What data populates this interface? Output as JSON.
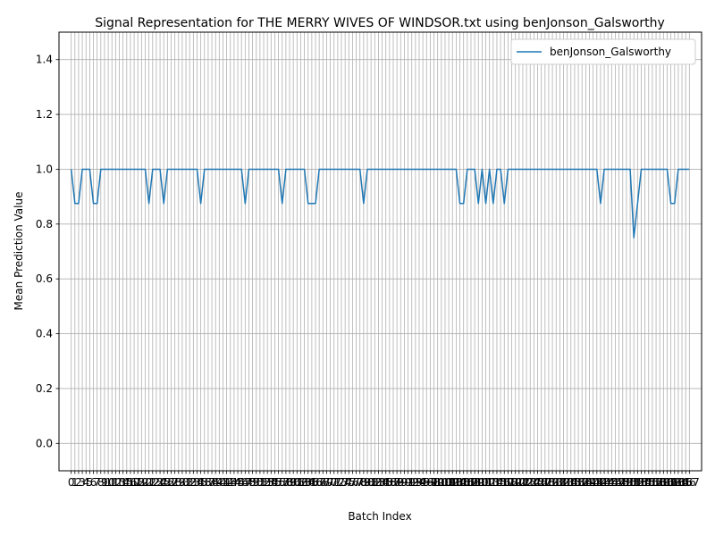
{
  "chart_data": {
    "type": "line",
    "title": "Signal Representation for THE MERRY WIVES OF WINDSOR.txt using benJonson_Galsworthy",
    "xlabel": "Batch Index",
    "ylabel": "Mean Prediction Value",
    "ylim": [
      -0.1,
      1.5
    ],
    "xlim": [
      -3.3,
      170.3
    ],
    "yticks": [
      0.0,
      0.2,
      0.4,
      0.6,
      0.8,
      1.0,
      1.2,
      1.4
    ],
    "ytick_labels": [
      "0.0",
      "0.2",
      "0.4",
      "0.6",
      "0.8",
      "1.0",
      "1.2",
      "1.4"
    ],
    "grid": true,
    "legend_position": "upper right",
    "x_first": 0,
    "x_last": 167,
    "dips": [
      [
        1,
        0.875
      ],
      [
        2,
        0.875
      ],
      [
        6,
        0.875
      ],
      [
        7,
        0.875
      ],
      [
        21,
        0.875
      ],
      [
        25,
        0.875
      ],
      [
        35,
        0.875
      ],
      [
        47,
        0.875
      ],
      [
        57,
        0.875
      ],
      [
        64,
        0.875
      ],
      [
        65,
        0.875
      ],
      [
        66,
        0.875
      ],
      [
        79,
        0.875
      ],
      [
        105,
        0.875
      ],
      [
        106,
        0.875
      ],
      [
        110,
        0.875
      ],
      [
        112,
        0.875
      ],
      [
        114,
        0.875
      ],
      [
        117,
        0.875
      ],
      [
        143,
        0.875
      ],
      [
        152,
        0.75
      ],
      [
        153,
        0.875
      ],
      [
        162,
        0.875
      ],
      [
        163,
        0.875
      ]
    ],
    "default_value": 1.0,
    "series": [
      {
        "name": "benJonson_Galsworthy",
        "color": "#1f77b4"
      }
    ]
  }
}
